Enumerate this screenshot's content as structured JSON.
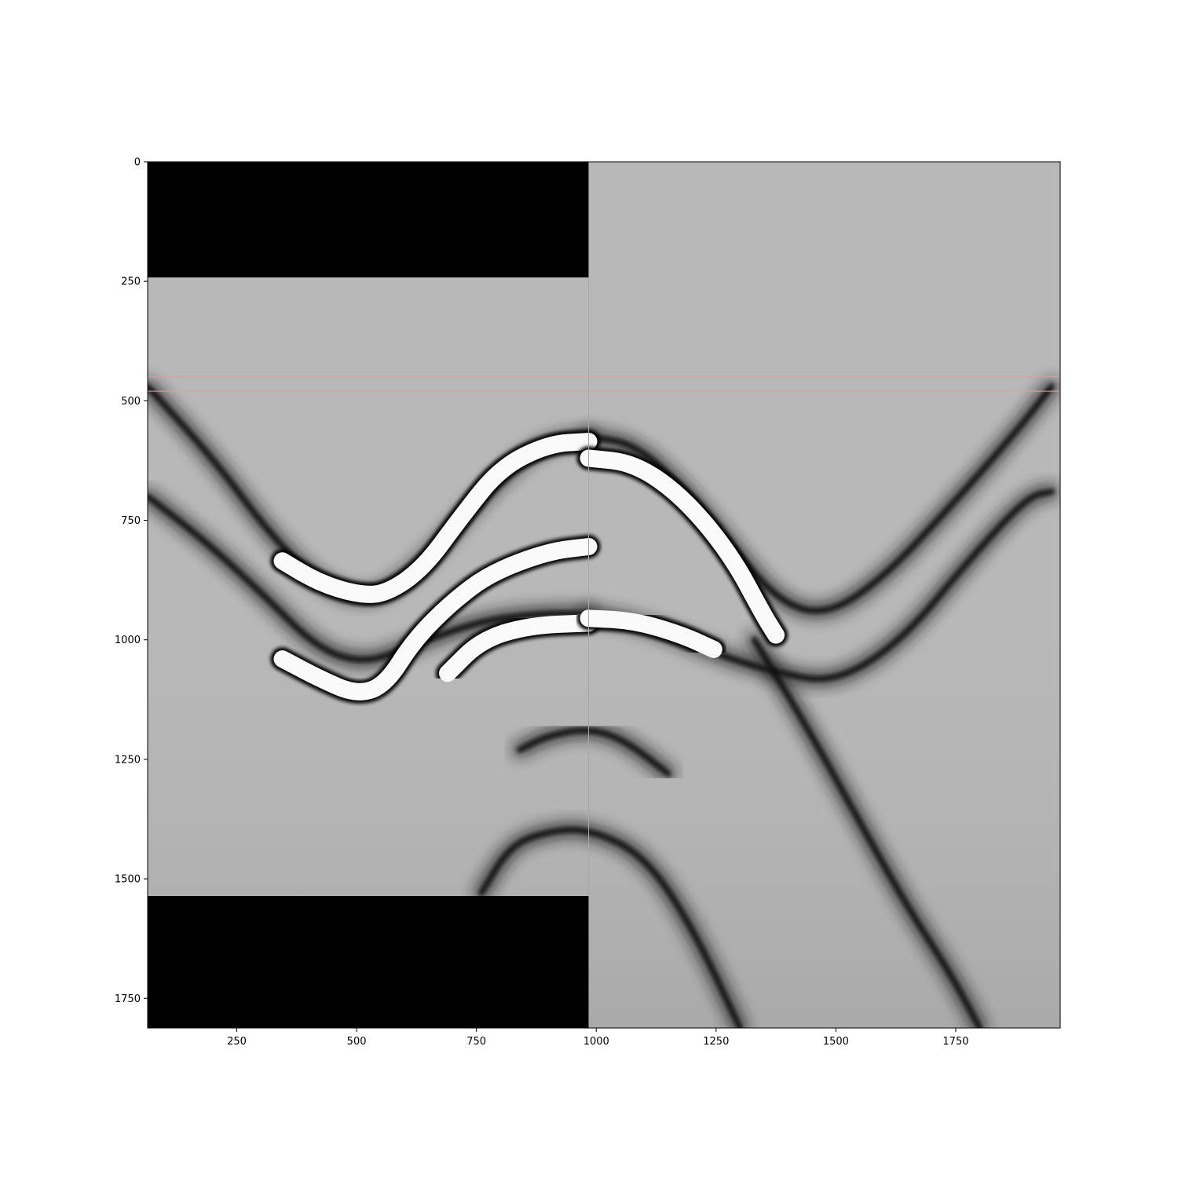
{
  "chart_data": {
    "type": "heatmap",
    "title": "",
    "xlabel": "",
    "ylabel": "",
    "colormap": "gray",
    "xlim": [
      64,
      1968
    ],
    "ylim": [
      1812,
      0
    ],
    "y_inverted": true,
    "grid": false,
    "legend": null,
    "x_ticks": [
      250,
      500,
      750,
      1000,
      1250,
      1500,
      1750
    ],
    "y_ticks": [
      0,
      250,
      500,
      750,
      1000,
      1250,
      1500,
      1750
    ],
    "x_tick_labels": [
      "250",
      "500",
      "750",
      "1000",
      "1250",
      "1500",
      "1750"
    ],
    "y_tick_labels": [
      "0",
      "250",
      "500",
      "750",
      "1000",
      "1250",
      "1500",
      "1750"
    ],
    "panel_split_x": 984,
    "background_value_color": "#b8b8b8",
    "masked_regions": [
      {
        "x": [
          64,
          984
        ],
        "y": [
          0,
          242
        ],
        "color": "#000000"
      },
      {
        "x": [
          64,
          984
        ],
        "y": [
          1536,
          1812
        ],
        "color": "#000000"
      }
    ],
    "reference_lines": {
      "orientation": "horizontal",
      "y": [
        450,
        480
      ],
      "color": "#d9a0a0"
    },
    "dark_bands": [
      [
        [
          64,
          470
        ],
        [
          200,
          620
        ],
        [
          320,
          780
        ],
        [
          420,
          880
        ],
        [
          520,
          920
        ],
        [
          620,
          860
        ],
        [
          760,
          700
        ],
        [
          880,
          590
        ],
        [
          984,
          575
        ]
      ],
      [
        [
          64,
          700
        ],
        [
          180,
          790
        ],
        [
          300,
          900
        ],
        [
          420,
          1020
        ],
        [
          520,
          1050
        ],
        [
          620,
          1010
        ],
        [
          760,
          960
        ],
        [
          880,
          945
        ],
        [
          984,
          945
        ]
      ],
      [
        [
          984,
          575
        ],
        [
          1080,
          590
        ],
        [
          1180,
          680
        ],
        [
          1280,
          800
        ],
        [
          1380,
          920
        ],
        [
          1480,
          950
        ],
        [
          1600,
          870
        ],
        [
          1740,
          720
        ],
        [
          1880,
          560
        ],
        [
          1950,
          470
        ]
      ],
      [
        [
          984,
          945
        ],
        [
          1100,
          965
        ],
        [
          1250,
          1030
        ],
        [
          1380,
          1070
        ],
        [
          1500,
          1090
        ],
        [
          1640,
          1000
        ],
        [
          1780,
          830
        ],
        [
          1900,
          700
        ],
        [
          1950,
          690
        ]
      ],
      [
        [
          1330,
          1000
        ],
        [
          1450,
          1200
        ],
        [
          1560,
          1400
        ],
        [
          1650,
          1560
        ],
        [
          1740,
          1700
        ],
        [
          1800,
          1812
        ]
      ],
      [
        [
          840,
          1230
        ],
        [
          900,
          1200
        ],
        [
          984,
          1185
        ],
        [
          1060,
          1210
        ],
        [
          1150,
          1280
        ]
      ],
      [
        [
          760,
          1530
        ],
        [
          820,
          1430
        ],
        [
          900,
          1400
        ],
        [
          984,
          1395
        ],
        [
          1100,
          1450
        ],
        [
          1200,
          1600
        ],
        [
          1300,
          1812
        ]
      ]
    ],
    "white_bands": [
      [
        [
          345,
          835
        ],
        [
          420,
          880
        ],
        [
          500,
          905
        ],
        [
          560,
          905
        ],
        [
          640,
          850
        ],
        [
          720,
          740
        ],
        [
          800,
          640
        ],
        [
          900,
          590
        ],
        [
          984,
          585
        ]
      ],
      [
        [
          345,
          1040
        ],
        [
          420,
          1080
        ],
        [
          500,
          1115
        ],
        [
          560,
          1095
        ],
        [
          620,
          1000
        ],
        [
          700,
          920
        ],
        [
          780,
          860
        ],
        [
          900,
          815
        ],
        [
          984,
          805
        ]
      ],
      [
        [
          690,
          1070
        ],
        [
          760,
          1000
        ],
        [
          860,
          970
        ],
        [
          984,
          965
        ]
      ],
      [
        [
          984,
          620
        ],
        [
          1080,
          630
        ],
        [
          1180,
          700
        ],
        [
          1280,
          820
        ],
        [
          1350,
          950
        ],
        [
          1375,
          990
        ]
      ],
      [
        [
          984,
          955
        ],
        [
          1080,
          960
        ],
        [
          1180,
          990
        ],
        [
          1245,
          1020
        ]
      ]
    ]
  }
}
